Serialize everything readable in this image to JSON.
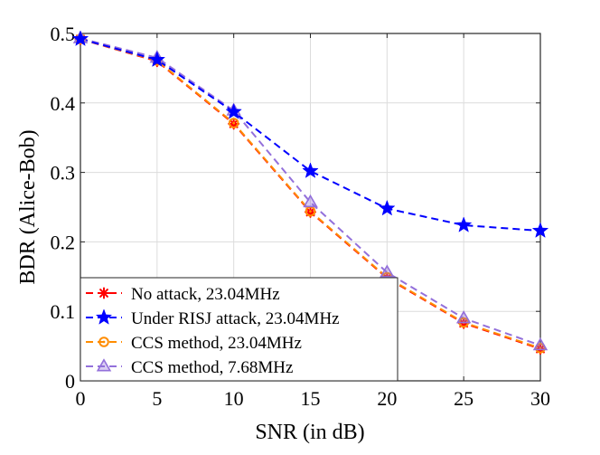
{
  "chart_data": {
    "type": "line",
    "title": "",
    "xlabel": "SNR (in dB)",
    "ylabel": "BDR (Alice-Bob)",
    "xlim": [
      0,
      30
    ],
    "ylim": [
      0,
      0.5
    ],
    "grid": true,
    "legend_position": "bottom-left",
    "x_ticks": [
      0,
      5,
      10,
      15,
      20,
      25,
      30
    ],
    "y_ticks": [
      0,
      0.1,
      0.2,
      0.3,
      0.4,
      0.5
    ],
    "x_tick_labels": [
      "0",
      "5",
      "10",
      "15",
      "20",
      "25",
      "30"
    ],
    "y_tick_labels": [
      "0",
      "0.1",
      "0.2",
      "0.3",
      "0.4",
      "0.5"
    ],
    "x": [
      0,
      5,
      10,
      15,
      20,
      25,
      30
    ],
    "series": [
      {
        "name": "No attack, 23.04MHz",
        "color": "#ff0000",
        "marker": "asterisk",
        "values": [
          0.492,
          0.46,
          0.37,
          0.243,
          0.148,
          0.083,
          0.046
        ]
      },
      {
        "name": "Under RISJ attack, 23.04MHz",
        "color": "#0000ff",
        "marker": "star",
        "values": [
          0.492,
          0.462,
          0.387,
          0.302,
          0.248,
          0.224,
          0.216
        ]
      },
      {
        "name": "CCS method, 23.04MHz",
        "color": "#ff8c00",
        "marker": "circle",
        "values": [
          0.492,
          0.461,
          0.371,
          0.244,
          0.149,
          0.084,
          0.047
        ]
      },
      {
        "name": "CCS method, 7.68MHz",
        "color": "#9370db",
        "marker": "triangle",
        "values": [
          0.493,
          0.465,
          0.389,
          0.257,
          0.156,
          0.09,
          0.051
        ]
      }
    ]
  }
}
